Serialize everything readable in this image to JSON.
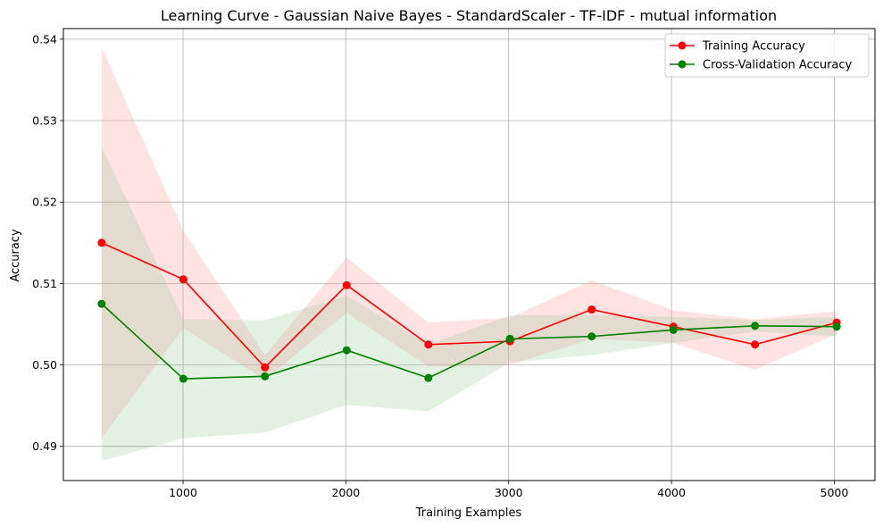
{
  "chart_data": {
    "type": "line",
    "title": "Learning Curve - Gaussian Naive Bayes - StandardScaler - TF-IDF - mutual information",
    "xlabel": "Training Examples",
    "ylabel": "Accuracy",
    "xlim": [
      265,
      5250
    ],
    "ylim": [
      0.4858,
      0.5413
    ],
    "xticks": [
      1000,
      2000,
      3000,
      4000,
      5000
    ],
    "xtick_labels": [
      "1000",
      "2000",
      "3000",
      "4000",
      "5000"
    ],
    "yticks": [
      0.49,
      0.5,
      0.51,
      0.52,
      0.53,
      0.54
    ],
    "ytick_labels": [
      "0.49",
      "0.50",
      "0.51",
      "0.52",
      "0.53",
      "0.54"
    ],
    "grid": true,
    "legend_position": "top-right",
    "x": [
      500,
      1002,
      1503,
      2005,
      2507,
      3008,
      3510,
      4012,
      4513,
      5015
    ],
    "series": [
      {
        "name": "Training Accuracy",
        "color": "#ff0000",
        "band_color": "#ff9999",
        "values": [
          0.515,
          0.5105,
          0.4997,
          0.5098,
          0.5025,
          0.5029,
          0.5068,
          0.5047,
          0.5025,
          0.5052
        ],
        "band_upper": [
          0.539,
          0.5165,
          0.5012,
          0.5132,
          0.5052,
          0.5058,
          0.5104,
          0.5067,
          0.5056,
          0.5066
        ],
        "band_lower": [
          0.491,
          0.5045,
          0.4982,
          0.5064,
          0.4998,
          0.5,
          0.5032,
          0.5027,
          0.4994,
          0.5038
        ]
      },
      {
        "name": "Cross-Validation Accuracy",
        "color": "#008000",
        "band_color": "#80c080",
        "values": [
          0.5075,
          0.4983,
          0.4986,
          0.5018,
          0.4984,
          0.5032,
          0.5035,
          0.5043,
          0.5048,
          0.5047
        ],
        "band_upper": [
          0.5268,
          0.5056,
          0.5055,
          0.5085,
          0.5025,
          0.5061,
          0.5061,
          0.5059,
          0.5055,
          0.5059
        ],
        "band_lower": [
          0.4882,
          0.491,
          0.4917,
          0.4951,
          0.4943,
          0.5003,
          0.5012,
          0.5027,
          0.5041,
          0.5035
        ]
      }
    ]
  }
}
